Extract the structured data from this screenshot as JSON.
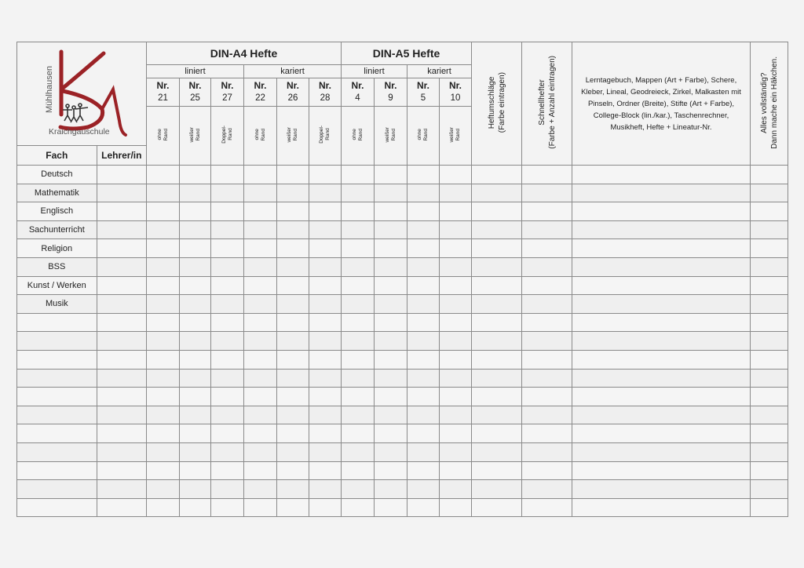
{
  "logo": {
    "vertical_text": "Mühlhausen",
    "bottom_text": "Kraichgauschule",
    "letters": "KSM",
    "color": "#9b2226"
  },
  "header": {
    "a4_title": "DIN-A4 Hefte",
    "a5_title": "DIN-A5 Hefte",
    "a4_groups": [
      "liniert",
      "kariert"
    ],
    "a5_groups": [
      "liniert",
      "kariert"
    ],
    "nr_label": "Nr.",
    "a4_numbers": [
      "21",
      "25",
      "27",
      "22",
      "26",
      "28"
    ],
    "a5_numbers": [
      "4",
      "9",
      "5",
      "10"
    ],
    "a4_margins": [
      [
        "ohne",
        "Rand"
      ],
      [
        "weißer",
        "Rand"
      ],
      [
        "Doppel-",
        "Rand"
      ],
      [
        "ohne",
        "Rand"
      ],
      [
        "weißer",
        "Rand"
      ],
      [
        "Doppel-",
        "Rand"
      ]
    ],
    "a5_margins": [
      [
        "ohne",
        "Rand"
      ],
      [
        "weißer",
        "Rand"
      ],
      [
        "ohne",
        "Rand"
      ],
      [
        "weißer",
        "Rand"
      ]
    ],
    "heftumschlaege": [
      "Heftumschläge",
      "(Farbe eintragen)"
    ],
    "schnellhefter": [
      "Schnellhefter",
      "(Farbe + Anzahl eintragen)"
    ],
    "materials": [
      "Lerntagebuch, Mappen (Art + Farbe), Schere,",
      "Kleber, Lineal, Geodreieck, Zirkel, Malkasten mit",
      "Pinseln, Ordner (Breite), Stifte (Art + Farbe),",
      "College-Block (lin./kar.), Taschenrechner,",
      "Musikheft, Hefte + Lineatur-Nr."
    ],
    "complete": [
      "Alles vollständig?",
      "Dann mache ein Häkchen."
    ],
    "fach": "Fach",
    "lehrer": "Lehrer/in"
  },
  "subjects": [
    "Deutsch",
    "Mathematik",
    "Englisch",
    "Sachunterricht",
    "Religion",
    "BSS",
    "Kunst / Werken",
    "Musik",
    "",
    "",
    "",
    "",
    "",
    "",
    "",
    "",
    "",
    "",
    ""
  ]
}
